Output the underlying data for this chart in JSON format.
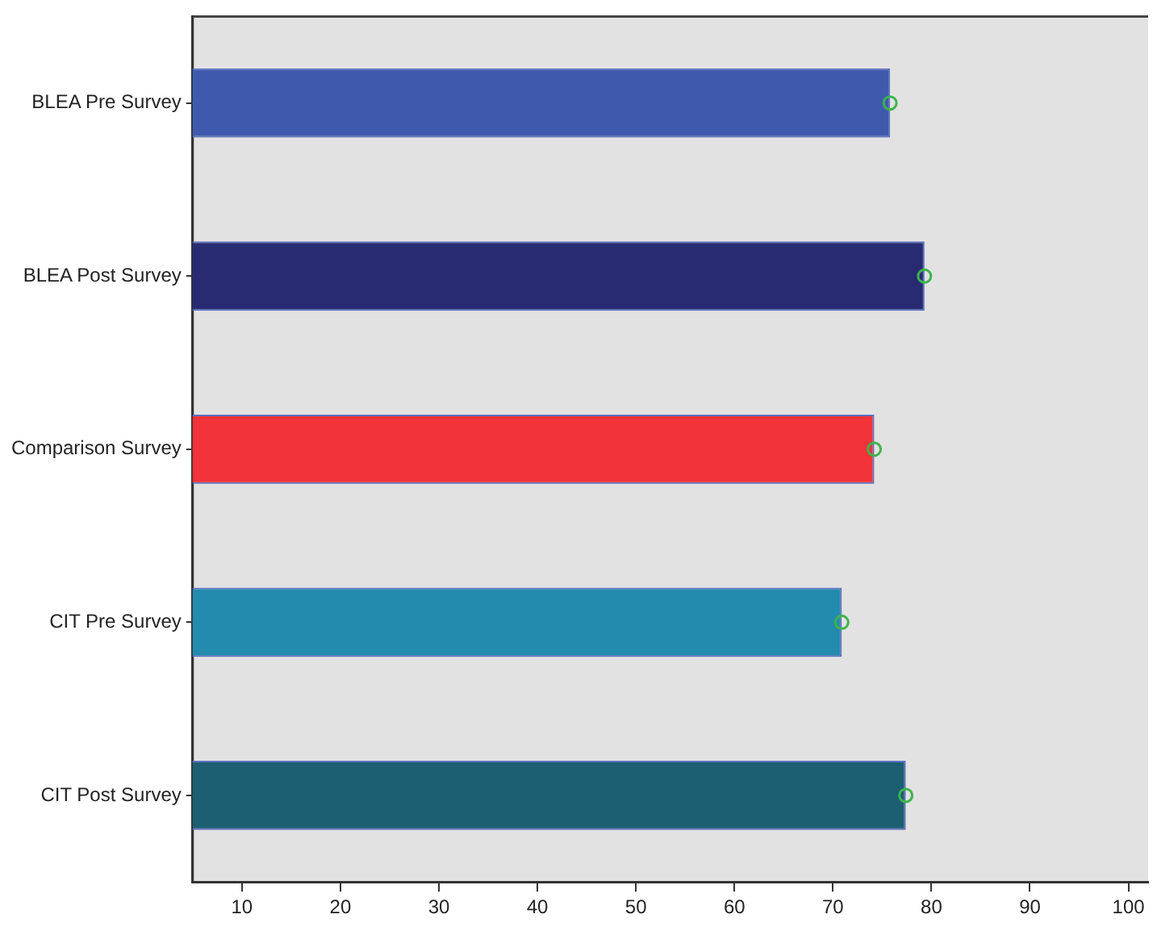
{
  "chart_data": {
    "type": "bar",
    "orientation": "horizontal",
    "categories": [
      "BLEA Pre Survey",
      "BLEA Post Survey",
      "Comparison Survey",
      "CIT Pre Survey",
      "CIT Post Survey"
    ],
    "series": [
      {
        "values": [
          75.8,
          79.3,
          74.2,
          70.9,
          77.4
        ],
        "colors": [
          "#3f5aad",
          "#282a72",
          "#f2333a",
          "#238bad",
          "#1c5e72"
        ]
      },
      {
        "type": "scatter",
        "values": [
          75.8,
          79.3,
          74.2,
          70.9,
          77.4
        ],
        "color": "#3cb44b",
        "marker": "circle"
      }
    ],
    "xlim": [
      5,
      102
    ],
    "xticks": [
      10,
      20,
      30,
      40,
      50,
      60,
      70,
      80,
      90,
      100
    ],
    "grid": false,
    "legend": false
  }
}
